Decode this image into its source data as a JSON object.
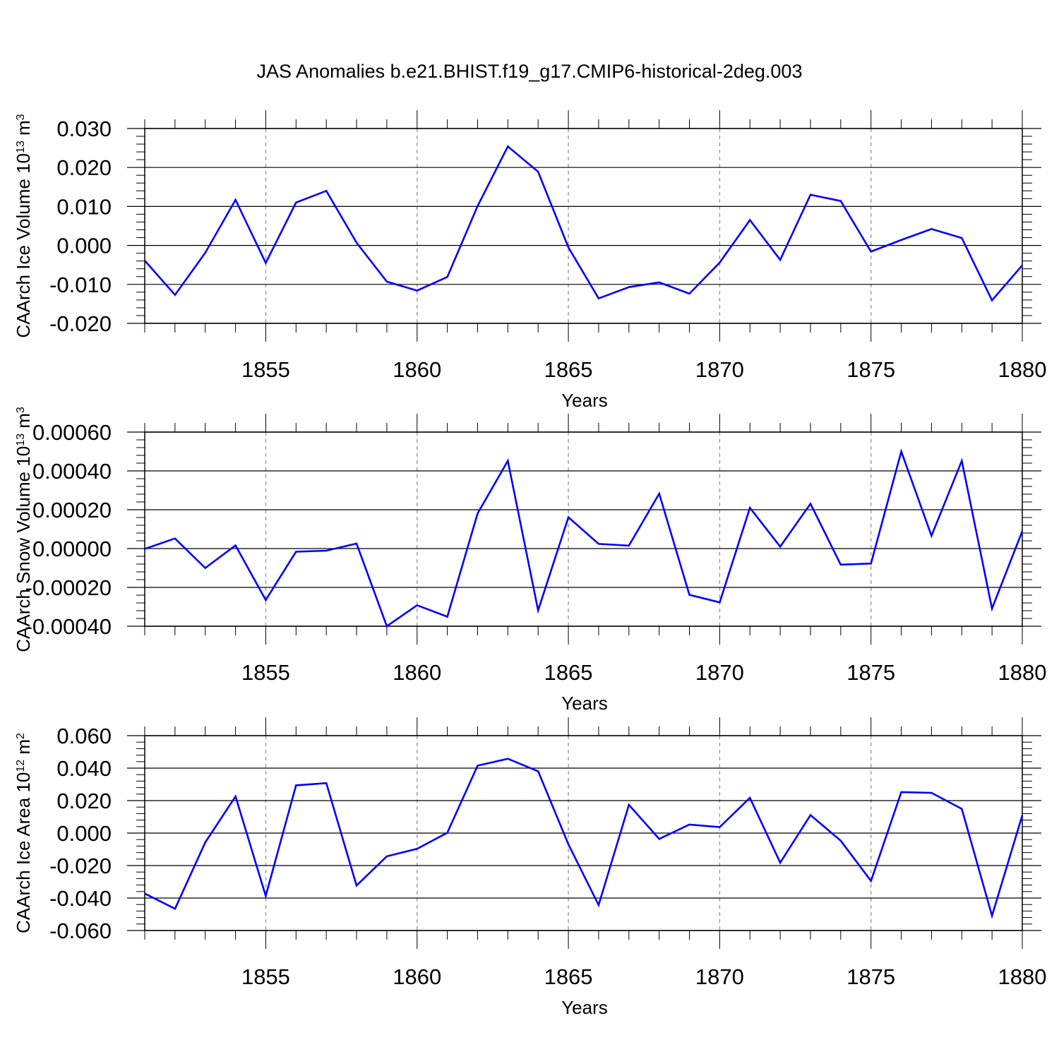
{
  "figure": {
    "title": "JAS Anomalies b.e21.BHIST.f19_g17.CMIP6-historical-2deg.003"
  },
  "chart_data": [
    {
      "type": "line",
      "title": "JAS Anomalies b.e21.BHIST.f19_g17.CMIP6-historical-2deg.003",
      "xlabel": "Years",
      "ylabel": {
        "base": "CAArch Ice Volume 10",
        "exp1": "13",
        "unit": " m",
        "exp2": "3"
      },
      "xlim": [
        1851,
        1880
      ],
      "ylim": [
        -0.02,
        0.03
      ],
      "yticks": [
        -0.02,
        -0.01,
        0.0,
        0.01,
        0.02,
        0.03
      ],
      "ytick_labels": [
        "-0.020",
        "-0.010",
        "0.000",
        "0.010",
        "0.020",
        "0.030"
      ],
      "xticks": [
        1855,
        1860,
        1865,
        1870,
        1875,
        1880
      ],
      "xtick_labels": [
        "1855",
        "1860",
        "1865",
        "1870",
        "1875",
        "1880"
      ],
      "grid": "vertical dashed at major x ticks",
      "series": [
        {
          "name": "CAArch Ice Volume",
          "color": "#0000ff",
          "x": [
            1851,
            1852,
            1853,
            1854,
            1855,
            1856,
            1857,
            1858,
            1859,
            1860,
            1861,
            1862,
            1863,
            1864,
            1865,
            1866,
            1867,
            1868,
            1869,
            1870,
            1871,
            1872,
            1873,
            1874,
            1875,
            1876,
            1877,
            1878,
            1879,
            1880
          ],
          "values": [
            -0.0039,
            -0.0127,
            -0.0019,
            0.0117,
            -0.0045,
            0.011,
            0.014,
            0.0007,
            -0.0093,
            -0.0116,
            -0.0081,
            0.0101,
            0.0254,
            0.0189,
            -0.0005,
            -0.0136,
            -0.0107,
            -0.0095,
            -0.0124,
            -0.0044,
            0.0065,
            -0.0037,
            0.013,
            0.0114,
            -0.0016,
            0.0014,
            0.0042,
            0.0019,
            -0.0141,
            -0.0051
          ]
        }
      ]
    },
    {
      "type": "line",
      "xlabel": "Years",
      "ylabel": {
        "base": "CAArch Snow Volume 10",
        "exp1": "13",
        "unit": " m",
        "exp2": "3"
      },
      "xlim": [
        1851,
        1880
      ],
      "ylim": [
        -0.0004,
        0.0006
      ],
      "yticks": [
        -0.0004,
        -0.0002,
        0.0,
        0.0002,
        0.0004,
        0.0006
      ],
      "ytick_labels": [
        "-0.00040",
        "-0.00020",
        "0.00000",
        "0.00020",
        "0.00040",
        "0.00060"
      ],
      "xticks": [
        1855,
        1860,
        1865,
        1870,
        1875,
        1880
      ],
      "xtick_labels": [
        "1855",
        "1860",
        "1865",
        "1870",
        "1875",
        "1880"
      ],
      "grid": "vertical dashed at major x ticks",
      "series": [
        {
          "name": "CAArch Snow Volume",
          "color": "#0000ff",
          "x": [
            1851,
            1852,
            1853,
            1854,
            1855,
            1856,
            1857,
            1858,
            1859,
            1860,
            1861,
            1862,
            1863,
            1864,
            1865,
            1866,
            1867,
            1868,
            1869,
            1870,
            1871,
            1872,
            1873,
            1874,
            1875,
            1876,
            1877,
            1878,
            1879,
            1880
          ],
          "values": [
            -2e-06,
            5.2e-05,
            -0.0001,
            1.6e-05,
            -0.000265,
            -1.6e-05,
            -1.1e-05,
            2.6e-05,
            -0.0004,
            -0.000292,
            -0.000351,
            0.000181,
            0.000452,
            -0.000318,
            0.000161,
            2.4e-05,
            1.5e-05,
            0.000283,
            -0.000238,
            -0.000277,
            0.00021,
            1e-05,
            0.000231,
            -8.3e-05,
            -7.7e-05,
            0.0005,
            6.6e-05,
            0.000452,
            -0.000309,
            9e-05
          ]
        }
      ]
    },
    {
      "type": "line",
      "xlabel": "Years",
      "ylabel": {
        "base": "CAArch Ice Area 10",
        "exp1": "12",
        "unit": " m",
        "exp2": "2"
      },
      "xlim": [
        1851,
        1880
      ],
      "ylim": [
        -0.06,
        0.06
      ],
      "yticks": [
        -0.06,
        -0.04,
        -0.02,
        0.0,
        0.02,
        0.04,
        0.06
      ],
      "ytick_labels": [
        "-0.060",
        "-0.040",
        "-0.020",
        "0.000",
        "0.020",
        "0.040",
        "0.060"
      ],
      "xticks": [
        1855,
        1860,
        1865,
        1870,
        1875,
        1880
      ],
      "xtick_labels": [
        "1855",
        "1860",
        "1865",
        "1870",
        "1875",
        "1880"
      ],
      "grid": "vertical dashed at major x ticks",
      "series": [
        {
          "name": "CAArch Ice Area",
          "color": "#0000ff",
          "x": [
            1851,
            1852,
            1853,
            1854,
            1855,
            1856,
            1857,
            1858,
            1859,
            1860,
            1861,
            1862,
            1863,
            1864,
            1865,
            1866,
            1867,
            1868,
            1869,
            1870,
            1871,
            1872,
            1873,
            1874,
            1875,
            1876,
            1877,
            1878,
            1879,
            1880
          ],
          "values": [
            -0.0372,
            -0.0466,
            -0.0058,
            0.0226,
            -0.0387,
            0.0294,
            0.0308,
            -0.0323,
            -0.0143,
            -0.0097,
            0.0002,
            0.0415,
            0.0458,
            0.0381,
            -0.0069,
            -0.0443,
            0.0174,
            -0.0036,
            0.0052,
            0.0037,
            0.0217,
            -0.0182,
            0.0111,
            -0.0047,
            -0.0295,
            0.0252,
            0.0248,
            0.0149,
            -0.0509,
            0.0109
          ]
        }
      ]
    }
  ]
}
